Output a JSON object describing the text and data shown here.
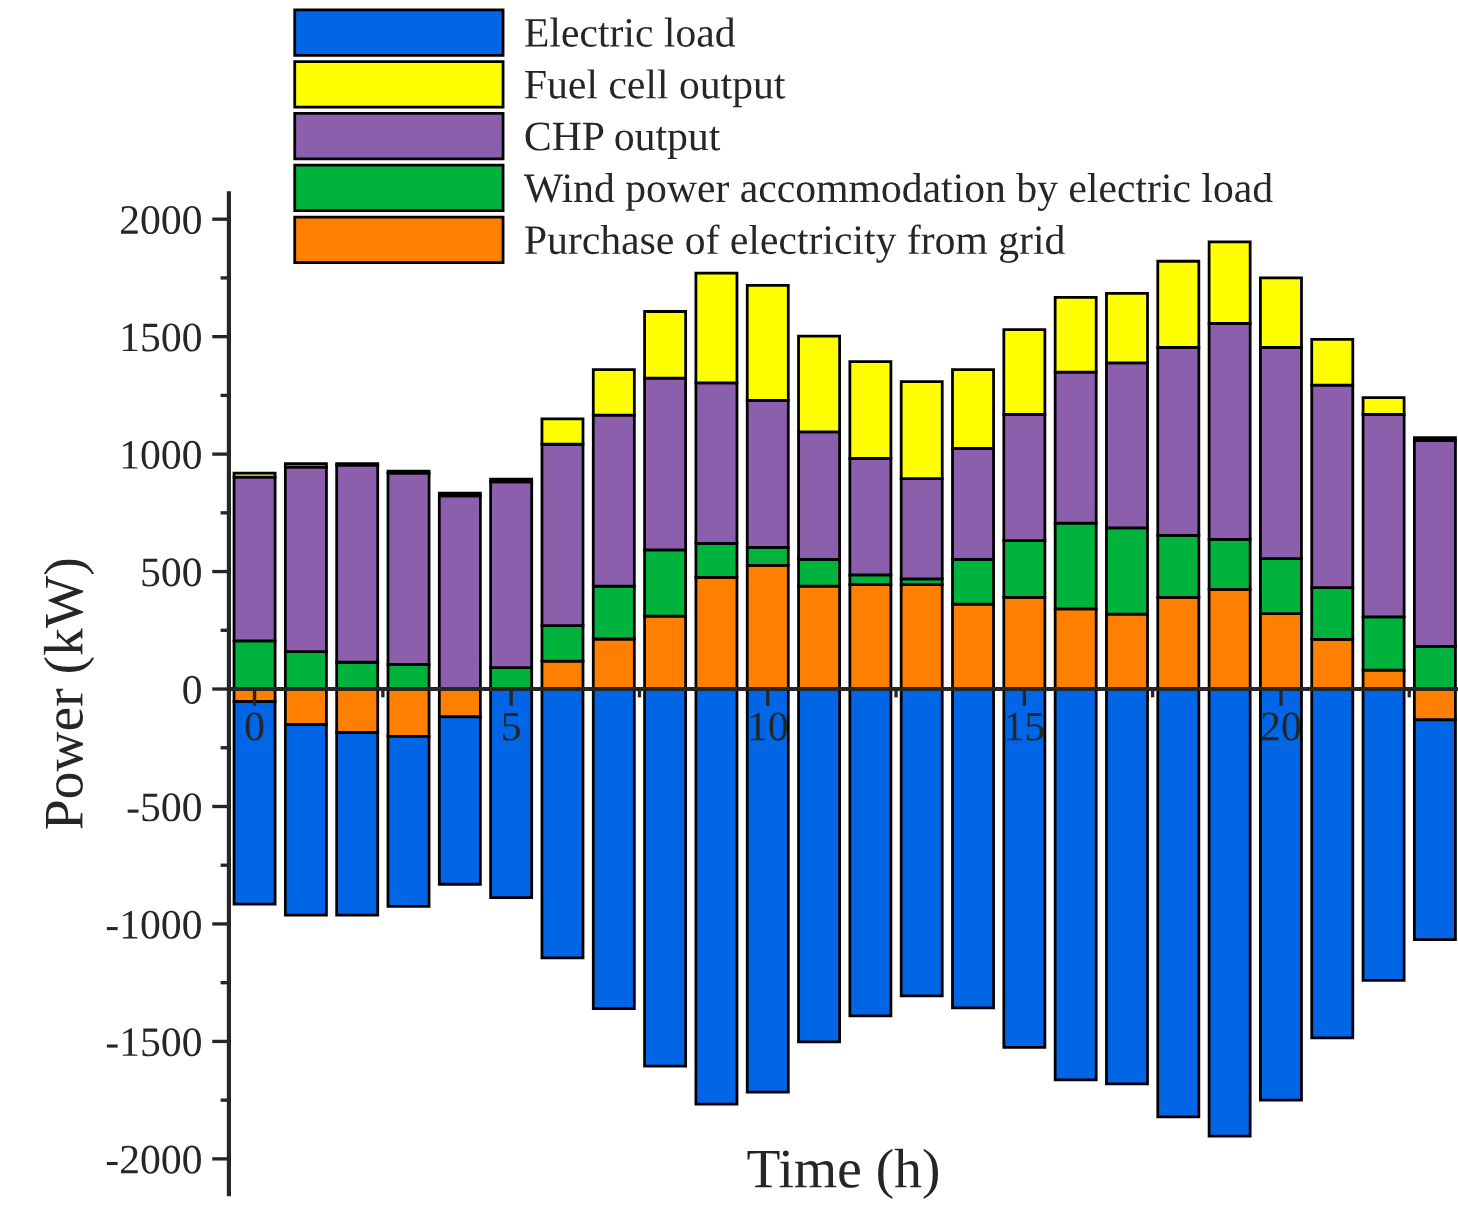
{
  "chart_data": {
    "type": "bar",
    "stacked": true,
    "xlabel": "Time (h)",
    "ylabel": "Power (kW)",
    "x": [
      0,
      1,
      2,
      3,
      4,
      5,
      6,
      7,
      8,
      9,
      10,
      11,
      12,
      13,
      14,
      15,
      16,
      17,
      18,
      19,
      20,
      21,
      22,
      23
    ],
    "series": [
      {
        "name": "Purchase of electricity from grid",
        "color": "#ff8000",
        "values": [
          -54,
          -151,
          -185,
          -202,
          -119,
          0,
          119,
          213,
          310,
          475,
          526,
          438,
          444,
          444,
          361,
          390,
          341,
          319,
          390,
          424,
          321,
          211,
          80,
          -131
        ]
      },
      {
        "name": "Wind power accommodation by electric load",
        "color": "#00b33c",
        "values": [
          205,
          159,
          114,
          105,
          0,
          91,
          151,
          225,
          282,
          145,
          77,
          114,
          42,
          25,
          191,
          242,
          365,
          367,
          264,
          213,
          234,
          221,
          227,
          182
        ]
      },
      {
        "name": "CHP output",
        "color": "#8c5fad",
        "values": [
          697,
          786,
          839,
          814,
          822,
          791,
          772,
          728,
          731,
          683,
          626,
          543,
          496,
          427,
          472,
          537,
          643,
          702,
          800,
          919,
          899,
          862,
          862,
          876
        ]
      },
      {
        "name": "Fuel cell output",
        "color": "#ffff00",
        "values": [
          17,
          14,
          6,
          8,
          12,
          11,
          108,
          194,
          284,
          467,
          489,
          407,
          412,
          413,
          336,
          361,
          318,
          296,
          367,
          347,
          296,
          194,
          71,
          12
        ]
      },
      {
        "name": "Electric load",
        "color": "#0066e6",
        "values": [
          -862,
          -811,
          -777,
          -723,
          -712,
          -888,
          -1144,
          -1360,
          -1605,
          -1767,
          -1716,
          -1502,
          -1391,
          -1306,
          -1357,
          -1525,
          -1664,
          -1681,
          -1821,
          -1903,
          -1750,
          -1485,
          -1240,
          -936
        ]
      }
    ],
    "xlim": [
      -0.5,
      23.45
    ],
    "xticks": [
      0,
      5,
      10,
      15,
      20
    ],
    "ylim": [
      -2150,
      2110
    ],
    "yticks": [
      -2000,
      -1500,
      -1000,
      -500,
      0,
      500,
      1000,
      1500,
      2000
    ],
    "legend": "top left",
    "grid": false
  }
}
